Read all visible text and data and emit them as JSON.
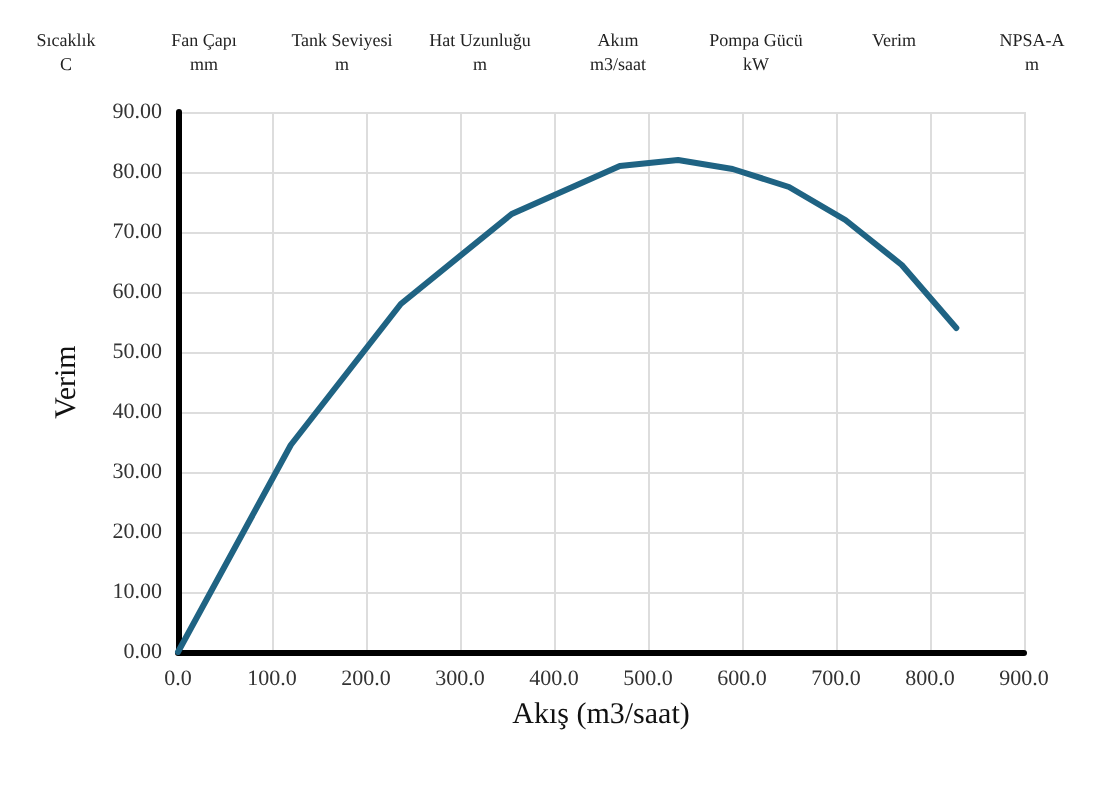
{
  "chart_data": {
    "type": "line",
    "xlabel": "Akış (m3/saat)",
    "ylabel": "Verim",
    "annotations": [
      "Sıcaklık\nC",
      "Fan Çapı\nmm",
      "Tank Seviyesi\nm",
      "Hat Uzunluğu\nm",
      "Akım\nm3/saat",
      "Pompa Gücü\nkW",
      "Verim",
      "NPSA-A\nm"
    ],
    "series": [
      {
        "color": "#1f6383",
        "x": [
          0,
          120,
          237,
          355,
          470,
          532,
          590,
          650,
          710,
          770,
          828
        ],
        "values": [
          0,
          34.5,
          58,
          73,
          81,
          82,
          80.5,
          77.5,
          72,
          64.5,
          54
        ]
      }
    ],
    "xlim": [
      0,
      900
    ],
    "xticks": [
      {
        "value": 0,
        "label": "0.0"
      },
      {
        "value": 100,
        "label": "100.0"
      },
      {
        "value": 200,
        "label": "200.0"
      },
      {
        "value": 300,
        "label": "300.0"
      },
      {
        "value": 400,
        "label": "400.0"
      },
      {
        "value": 500,
        "label": "500.0"
      },
      {
        "value": 600,
        "label": "600.0"
      },
      {
        "value": 700,
        "label": "700.0"
      },
      {
        "value": 800,
        "label": "800.0"
      },
      {
        "value": 900,
        "label": "900.0"
      }
    ],
    "ylim": [
      0,
      90
    ],
    "yticks": [
      {
        "value": 0,
        "label": "0.00"
      },
      {
        "value": 10,
        "label": "10.00"
      },
      {
        "value": 20,
        "label": "20.00"
      },
      {
        "value": 30,
        "label": "30.00"
      },
      {
        "value": 40,
        "label": "40.00"
      },
      {
        "value": 50,
        "label": "50.00"
      },
      {
        "value": 60,
        "label": "60.00"
      },
      {
        "value": 70,
        "label": "70.00"
      },
      {
        "value": 80,
        "label": "80.00"
      },
      {
        "value": 90,
        "label": "90.00"
      }
    ],
    "grid": true,
    "marker": "none",
    "line_style": "solid"
  }
}
